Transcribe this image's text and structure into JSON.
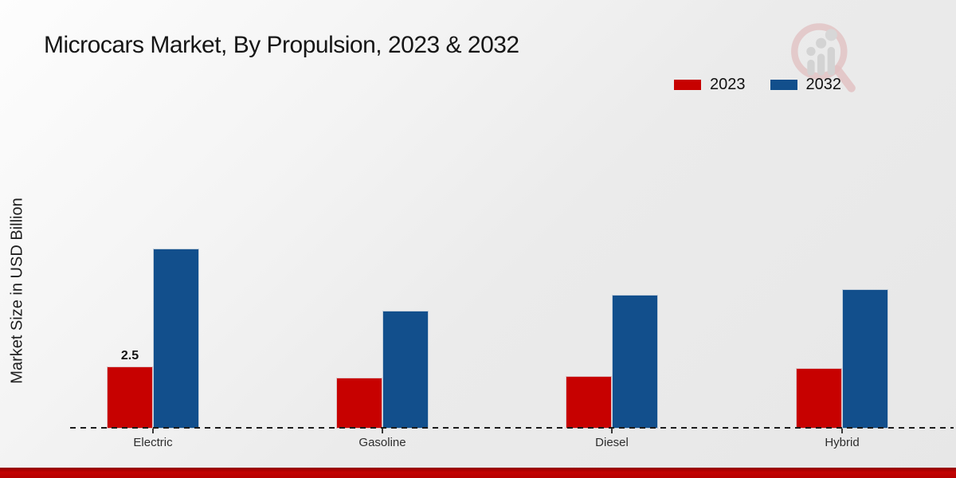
{
  "page": {
    "title": "Microcars Market, By Propulsion, 2023 & 2032"
  },
  "colors": {
    "series_2023": "#c70100",
    "series_2032": "#124f8c",
    "footer_stripe": "#b40000",
    "baseline": "#1c1c1c"
  },
  "legend": {
    "items": [
      {
        "label": "2023",
        "color": "#c70100"
      },
      {
        "label": "2032",
        "color": "#124f8c"
      }
    ]
  },
  "watermark": {
    "name": "market-research-magnifier-logo"
  },
  "chart_data": {
    "type": "bar",
    "title": "Microcars Market, By Propulsion, 2023 & 2032",
    "xlabel": "",
    "ylabel": "Market Size in USD Billion",
    "categories": [
      "Electric",
      "Gasoline",
      "Diesel",
      "Hybrid"
    ],
    "series": [
      {
        "name": "2023",
        "color": "#c70100",
        "values": [
          2.5,
          2.05,
          2.1,
          2.45
        ]
      },
      {
        "name": "2032",
        "color": "#124f8c",
        "values": [
          7.25,
          4.75,
          5.4,
          5.6
        ]
      }
    ],
    "ylim": [
      0,
      8
    ],
    "grid": false,
    "axis_style": "dashed-baseline-only",
    "legend_position": "top-right",
    "annotations": [
      {
        "category": "Electric",
        "series": "2023",
        "text": "2.5"
      }
    ]
  }
}
